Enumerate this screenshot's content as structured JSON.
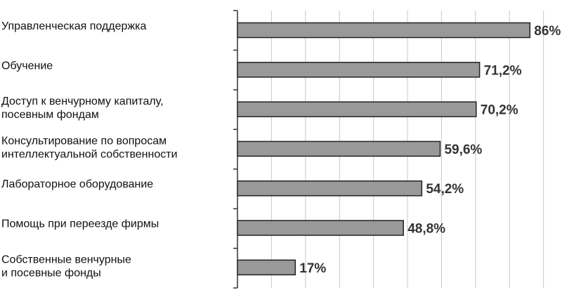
{
  "chart_data": {
    "type": "bar",
    "orientation": "horizontal",
    "categories": [
      [
        "Управленческая поддержка"
      ],
      [
        "Обучение"
      ],
      [
        "Доступ к венчурному капиталу,",
        "посевным фондам"
      ],
      [
        "Консультирование по вопросам",
        "интеллектуальной собственности"
      ],
      [
        "Лабораторное оборудование"
      ],
      [
        "Помощь при переезде фирмы"
      ],
      [
        "Собственные венчурные",
        "и посевные фонды"
      ]
    ],
    "values": [
      86,
      71.2,
      70.2,
      59.6,
      54.2,
      48.8,
      17
    ],
    "value_labels": [
      "86%",
      "71,2%",
      "70,2%",
      "59,6%",
      "54,2%",
      "48,8%",
      "17%"
    ],
    "title": "",
    "xlabel": "",
    "ylabel": "",
    "xlim": [
      0,
      90
    ],
    "grid": "vertical",
    "legend": "none",
    "colors": {
      "bar_fill": "#999999",
      "bar_stroke": "#222222",
      "grid": "#c8c8c8",
      "axis": "#333333"
    }
  }
}
